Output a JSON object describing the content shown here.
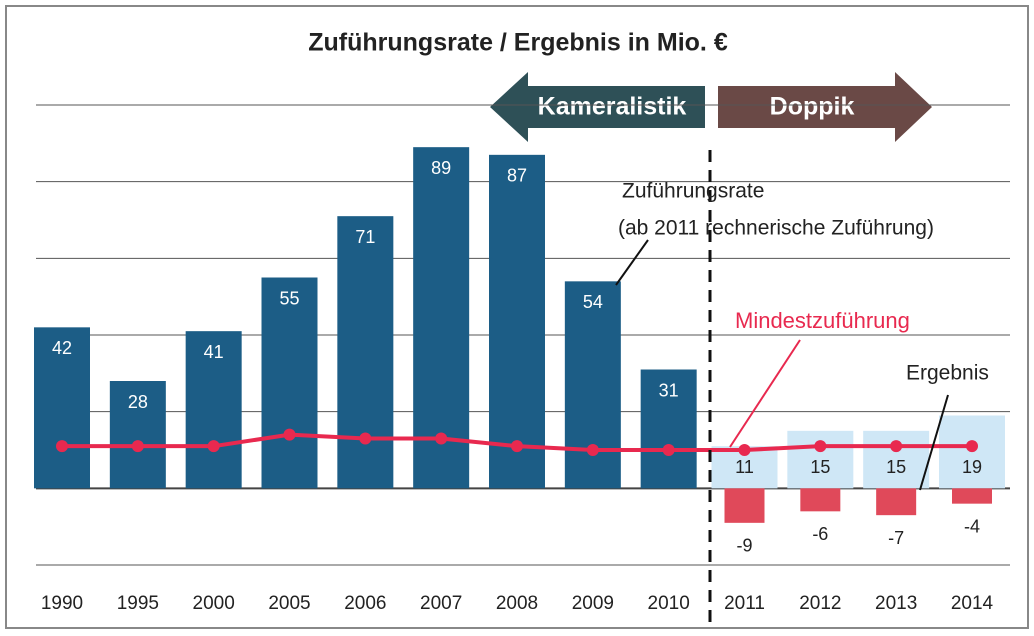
{
  "chart_data": {
    "type": "bar",
    "title": "Zuführungsrate / Ergebnis in Mio. €",
    "categories": [
      "1990",
      "1995",
      "2000",
      "2005",
      "2006",
      "2007",
      "2008",
      "2009",
      "2010",
      "2011",
      "2012",
      "2013",
      "2014"
    ],
    "series": [
      {
        "name": "Zuführungsrate",
        "colors": [
          "#1c5d86",
          "#1c5d86",
          "#1c5d86",
          "#1c5d86",
          "#1c5d86",
          "#1c5d86",
          "#1c5d86",
          "#1c5d86",
          "#1c5d86",
          "#cfe7f6",
          "#cfe7f6",
          "#cfe7f6",
          "#cfe7f6"
        ],
        "values": [
          42,
          28,
          41,
          55,
          71,
          89,
          87,
          54,
          31,
          11,
          15,
          15,
          19
        ]
      },
      {
        "name": "Ergebnis",
        "color": "#e0495a",
        "values": [
          null,
          null,
          null,
          null,
          null,
          null,
          null,
          null,
          null,
          -9,
          -6,
          -7,
          -4
        ]
      },
      {
        "name": "Mindestzuführung",
        "type": "line",
        "color": "#e8294f",
        "values": [
          11,
          11,
          11,
          14,
          13,
          13,
          11,
          10,
          10,
          10,
          11,
          11,
          11
        ]
      }
    ],
    "annotations": {
      "rate": "Zuführungsrate",
      "rate_note": "(ab 2011 rechnerische Zuführung)",
      "min": "Mindestzuführung",
      "result": "Ergebnis",
      "left_arrow": "Kameralistik",
      "right_arrow": "Doppik"
    },
    "ylim": [
      -20,
      100
    ],
    "yticks": [
      -20,
      0,
      20,
      40,
      60,
      80,
      100
    ],
    "grid": true
  }
}
